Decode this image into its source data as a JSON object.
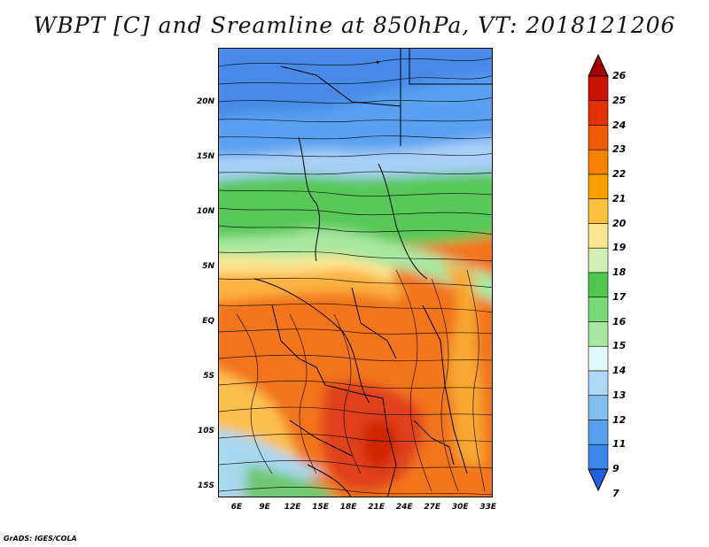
{
  "title": "WBPT [C] and Sreamline at 850hPa, VT: 2018121206",
  "credit": "GrADS: IGES/COLA",
  "axes": {
    "y_ticks": [
      {
        "label": "20N",
        "lat": 20
      },
      {
        "label": "15N",
        "lat": 15
      },
      {
        "label": "10N",
        "lat": 10
      },
      {
        "label": "5N",
        "lat": 5
      },
      {
        "label": "EQ",
        "lat": 0
      },
      {
        "label": "5S",
        "lat": -5
      },
      {
        "label": "10S",
        "lat": -10
      },
      {
        "label": "15S",
        "lat": -15
      }
    ],
    "x_ticks": [
      {
        "label": "6E",
        "lon": 6
      },
      {
        "label": "9E",
        "lon": 9
      },
      {
        "label": "12E",
        "lon": 12
      },
      {
        "label": "15E",
        "lon": 15
      },
      {
        "label": "18E",
        "lon": 18
      },
      {
        "label": "21E",
        "lon": 21
      },
      {
        "label": "24E",
        "lon": 24
      },
      {
        "label": "27E",
        "lon": 27
      },
      {
        "label": "30E",
        "lon": 30
      },
      {
        "label": "33E",
        "lon": 33
      }
    ],
    "lon_range": [
      4,
      33.5
    ],
    "lat_range": [
      -16,
      25
    ]
  },
  "colorbar": {
    "labels": [
      "26",
      "25",
      "24",
      "23",
      "22",
      "21",
      "20",
      "19",
      "18",
      "17",
      "16",
      "15",
      "14",
      "13",
      "12",
      "11",
      "9",
      "7"
    ],
    "colors": [
      "#a50000",
      "#c81400",
      "#e23200",
      "#f05a00",
      "#f88200",
      "#fca000",
      "#fdc040",
      "#fde690",
      "#d2f0b4",
      "#50c850",
      "#7ad878",
      "#a8e8a0",
      "#e0f8f8",
      "#b0d8f8",
      "#80c0f0",
      "#5aa0f0",
      "#3c88e8",
      "#2060e0"
    ]
  }
}
